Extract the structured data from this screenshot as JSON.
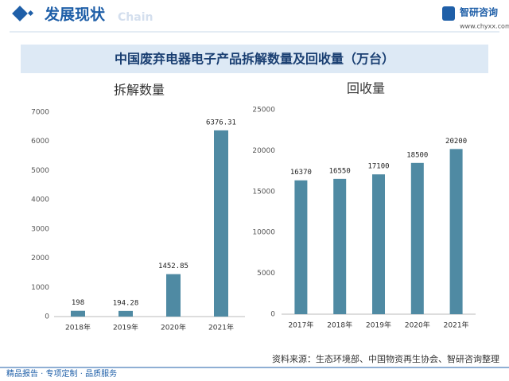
{
  "header": {
    "title": "发展现状",
    "subtitle": "Chain",
    "brand": "智研咨询",
    "url": "www.chyxx.com"
  },
  "banner": "中国废弃电器电子产品拆解数量及回收量（万台）",
  "chart_data": [
    {
      "type": "bar",
      "title": "拆解数量",
      "categories": [
        "2018年",
        "2019年",
        "2020年",
        "2021年"
      ],
      "values": [
        198,
        194.28,
        1452.85,
        6376.31
      ],
      "color": "#4f8aa3",
      "ylim": [
        0,
        7000
      ],
      "yticks": [
        0,
        1000,
        2000,
        3000,
        4000,
        5000,
        6000,
        7000
      ],
      "grid": false
    },
    {
      "type": "bar",
      "title": "回收量",
      "categories": [
        "2017年",
        "2018年",
        "2019年",
        "2020年",
        "2021年"
      ],
      "values": [
        16370,
        16550,
        17100,
        18500,
        20200
      ],
      "color": "#4f8aa3",
      "ylim": [
        0,
        25000
      ],
      "yticks": [
        0,
        5000,
        10000,
        15000,
        20000,
        25000
      ],
      "grid": false
    }
  ],
  "source": "资料来源：生态环境部、中国物资再生协会、智研咨询整理",
  "footer": "精品报告 · 专项定制 · 品质服务"
}
